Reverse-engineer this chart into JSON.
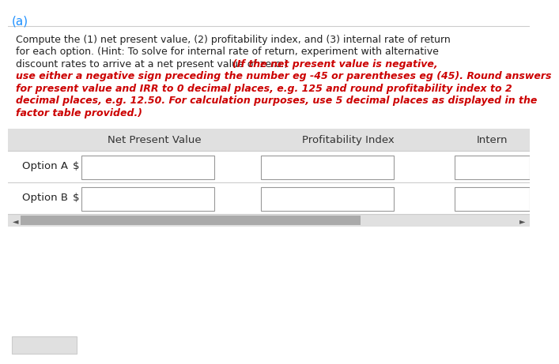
{
  "title_label": "(a)",
  "title_color": "#1E90FF",
  "header_bg": "#E0E0E0",
  "header_text_color": "#333333",
  "col_headers": [
    "Net Present Value",
    "Profitability Index",
    "Intern"
  ],
  "row_labels": [
    "Option A",
    "Option B"
  ],
  "dollar_sign": "$",
  "bg_color": "#FFFFFF",
  "separator_color": "#CCCCCC",
  "scrollbar_color": "#AAAAAA",
  "box_border_color": "#999999",
  "arrow_color": "#555555",
  "lines_data": [
    [
      [
        "Compute the (1) net present value, (2) profitability index, and (3) internal rate of return",
        "#222222"
      ]
    ],
    [
      [
        "for each option. (Hint: To solve for internal rate of return, experiment with alternative",
        "#222222"
      ]
    ],
    [
      [
        "discount rates to arrive at a net present value of zero.) ",
        "#222222"
      ],
      [
        "(If the net present value is negative,",
        "#CC0000"
      ]
    ],
    [
      [
        "use either a negative sign preceding the number eg -45 or parentheses eg (45). Round answers",
        "#CC0000"
      ]
    ],
    [
      [
        "for present value and IRR to 0 decimal places, e.g. 125 and round profitability index to 2",
        "#CC0000"
      ]
    ],
    [
      [
        "decimal places, e.g. 12.50. For calculation purposes, use 5 decimal places as displayed in the",
        "#CC0000"
      ]
    ],
    [
      [
        "factor table provided.)",
        "#CC0000"
      ]
    ]
  ]
}
